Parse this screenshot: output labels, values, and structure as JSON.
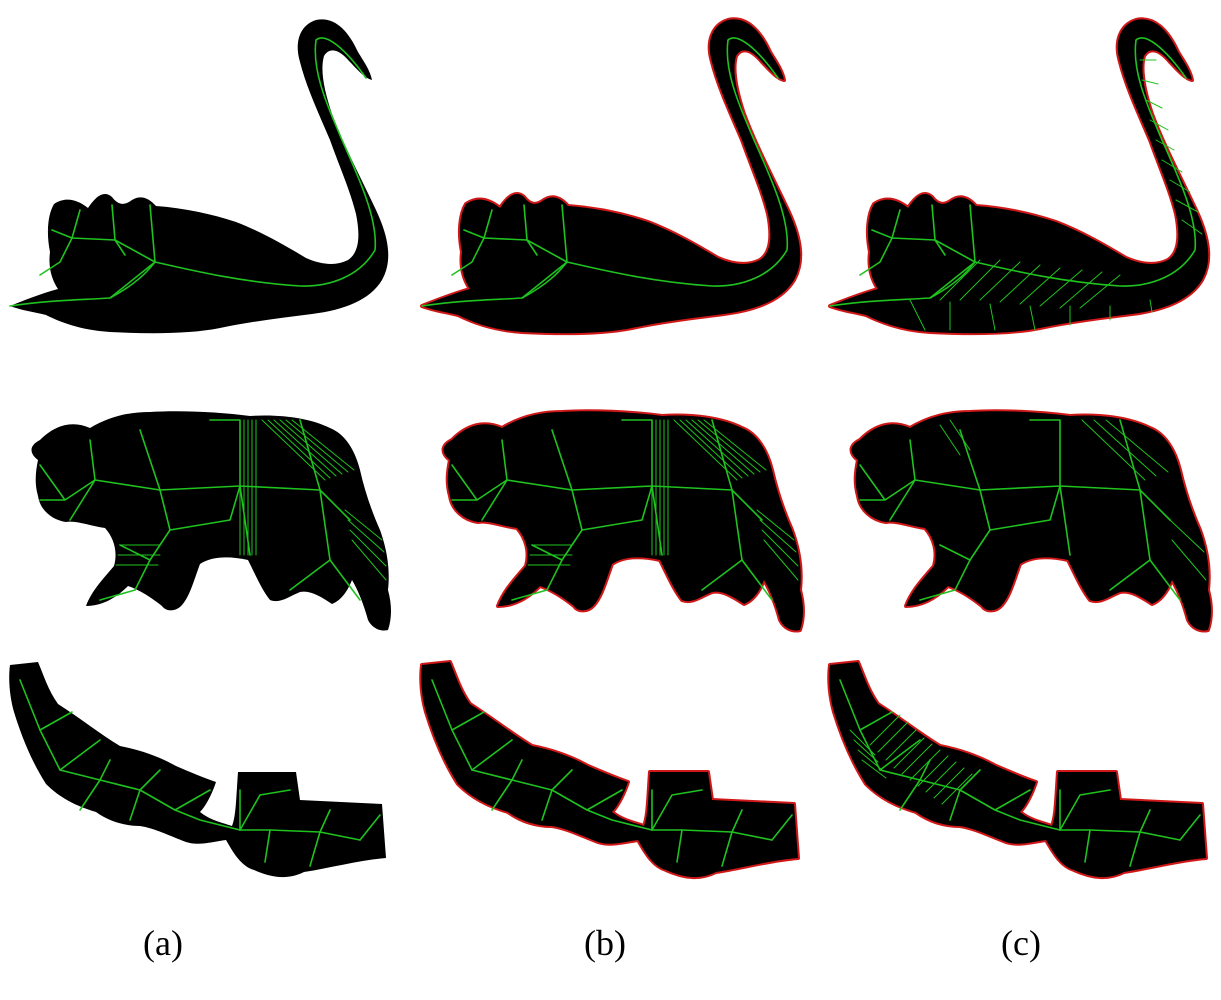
{
  "figure": {
    "panels": [
      {
        "id": "a",
        "caption": "(a)"
      },
      {
        "id": "b",
        "caption": "(b)"
      },
      {
        "id": "c",
        "caption": "(c)"
      }
    ],
    "rows": [
      "swan",
      "bear",
      "strip"
    ],
    "colors": {
      "shape": "#000000",
      "skeleton": "#1fc21f",
      "contour": "#d01818",
      "background": "#ffffff"
    }
  }
}
